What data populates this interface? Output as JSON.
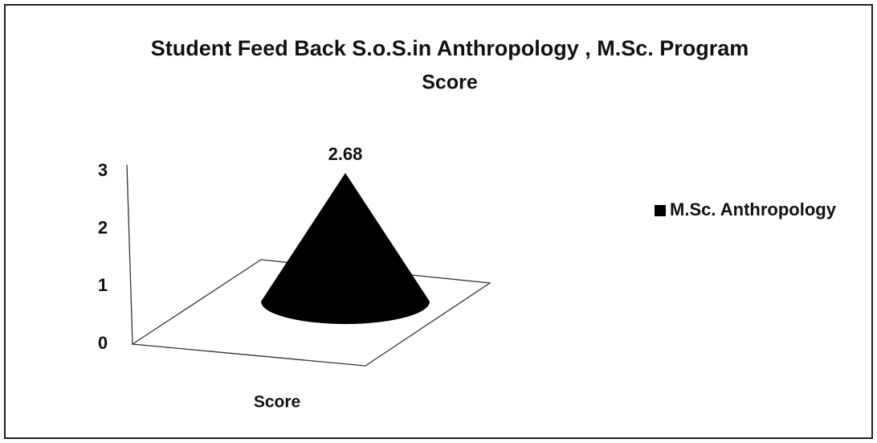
{
  "chart_data": {
    "type": "cone",
    "title": "Student Feed Back S.o.S.in Anthropology , M.Sc. Program",
    "subtitle": "Score",
    "categories": [
      "Score"
    ],
    "series": [
      {
        "name": "M.Sc. Anthropology",
        "color": "#000000",
        "values": [
          2.68
        ]
      }
    ],
    "ylim": [
      0,
      3
    ],
    "yticks": [
      0,
      1,
      2,
      3
    ],
    "grid": false,
    "legend": "right",
    "data_labels": true
  }
}
